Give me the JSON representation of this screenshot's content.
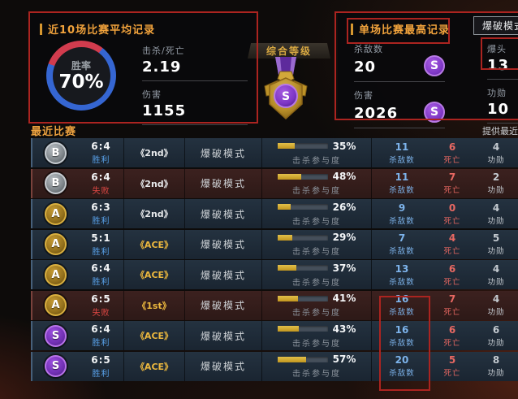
{
  "left_panel": {
    "title": "近10场比赛平均记录",
    "win_rate_label": "胜率",
    "win_rate_value": "70%",
    "win_rate_pct": 70,
    "stats": [
      {
        "label": "击杀/死亡",
        "value": "2.19"
      },
      {
        "label": "伤害",
        "value": "1155"
      }
    ]
  },
  "medal": {
    "label": "综合等级",
    "grade": "S"
  },
  "right_panel": {
    "title": "单场比赛最高记录",
    "mode_button": "爆破模式",
    "stats_left": [
      {
        "label": "杀敌数",
        "value": "20",
        "badge": "S"
      },
      {
        "label": "伤害",
        "value": "2026",
        "badge": "S"
      }
    ],
    "stats_right": [
      {
        "label": "爆头",
        "value": "13"
      },
      {
        "label": "功勋",
        "value": "10"
      }
    ]
  },
  "table": {
    "section_title": "最近比赛",
    "right_note": "提供最近",
    "participation_label": "击杀参与度",
    "kills_label": "杀敌数",
    "deaths_label": "死亡",
    "merit_label": "功勋",
    "rows": [
      {
        "grade": "B",
        "score": "6:4",
        "result": "胜利",
        "win": true,
        "rank": "《2nd》",
        "rank_gold": false,
        "mode": "爆破模式",
        "participation": 35,
        "kills": "11",
        "deaths": "6",
        "merit": "4"
      },
      {
        "grade": "B",
        "score": "6:4",
        "result": "失败",
        "win": false,
        "rank": "《2nd》",
        "rank_gold": false,
        "mode": "爆破模式",
        "participation": 48,
        "kills": "11",
        "deaths": "7",
        "merit": "2"
      },
      {
        "grade": "A",
        "score": "6:3",
        "result": "胜利",
        "win": true,
        "rank": "《2nd》",
        "rank_gold": false,
        "mode": "爆破模式",
        "participation": 26,
        "kills": "9",
        "deaths": "0",
        "merit": "4"
      },
      {
        "grade": "A",
        "score": "5:1",
        "result": "胜利",
        "win": true,
        "rank": "《ACE》",
        "rank_gold": true,
        "mode": "爆破模式",
        "participation": 29,
        "kills": "7",
        "deaths": "4",
        "merit": "5"
      },
      {
        "grade": "A",
        "score": "6:4",
        "result": "胜利",
        "win": true,
        "rank": "《ACE》",
        "rank_gold": true,
        "mode": "爆破模式",
        "participation": 37,
        "kills": "13",
        "deaths": "6",
        "merit": "4"
      },
      {
        "grade": "A",
        "score": "6:5",
        "result": "失败",
        "win": false,
        "rank": "《1st》",
        "rank_gold": true,
        "mode": "爆破模式",
        "participation": 41,
        "kills": "16",
        "deaths": "7",
        "merit": "4"
      },
      {
        "grade": "S",
        "score": "6:4",
        "result": "胜利",
        "win": true,
        "rank": "《ACE》",
        "rank_gold": true,
        "mode": "爆破模式",
        "participation": 43,
        "kills": "16",
        "deaths": "6",
        "merit": "6"
      },
      {
        "grade": "S",
        "score": "6:5",
        "result": "胜利",
        "win": true,
        "rank": "《ACE》",
        "rank_gold": true,
        "mode": "爆破模式",
        "participation": 57,
        "kills": "20",
        "deaths": "5",
        "merit": "8"
      }
    ]
  },
  "colors": {
    "accent_orange": "#f2a33c",
    "annotation_red": "#ab2420",
    "win_blue": "#58a0e8",
    "lose_red": "#e04844",
    "bar_gold": "#d8b13a",
    "badge_purple": "#8a3fd0"
  }
}
